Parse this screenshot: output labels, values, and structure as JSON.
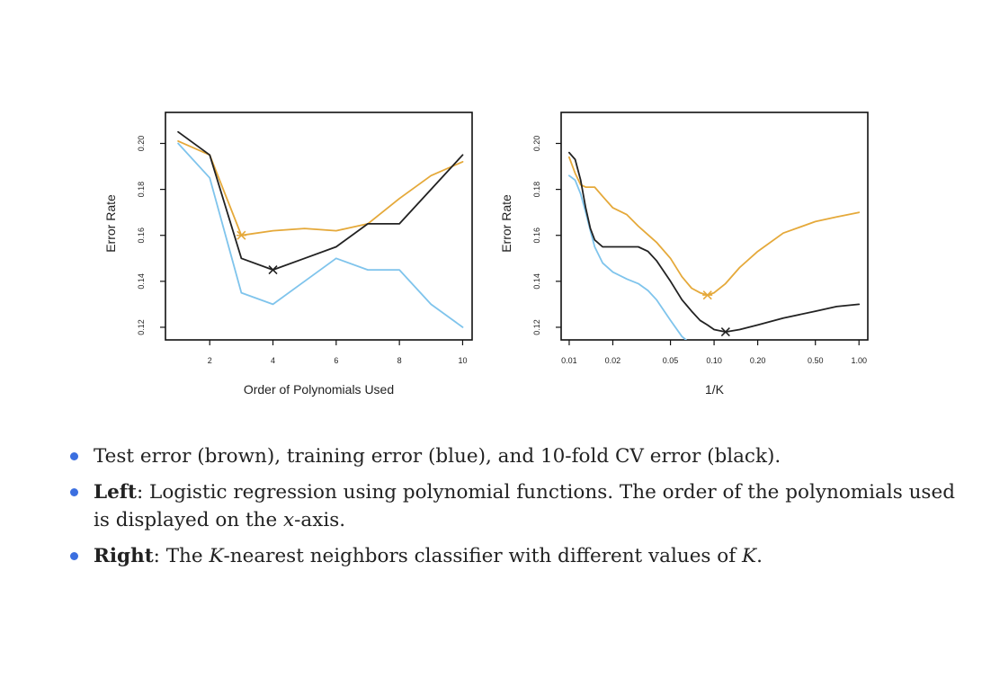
{
  "colors": {
    "test": "#e5a93a",
    "train": "#7fc4ec",
    "cv": "#222222",
    "bullet": "#3b6fe0"
  },
  "chart_data": [
    {
      "type": "line",
      "xlabel": "Order of Polynomials Used",
      "ylabel": "Error Rate",
      "xlim": [
        0.6,
        10.3
      ],
      "ylim": [
        0.1145,
        0.2135
      ],
      "x_scale": "linear",
      "xticks": [
        2,
        4,
        6,
        8,
        10
      ],
      "xtick_labels": [
        "2",
        "4",
        "6",
        "8",
        "10"
      ],
      "yticks": [
        0.12,
        0.14,
        0.16,
        0.18,
        0.2
      ],
      "ytick_labels": [
        "0.12",
        "0.14",
        "0.16",
        "0.18",
        "0.20"
      ],
      "series": [
        {
          "name": "Test error (brown)",
          "color_key": "test",
          "points": [
            [
              1,
              0.201
            ],
            [
              2,
              0.195
            ],
            [
              3,
              0.16
            ],
            [
              4,
              0.162
            ],
            [
              5,
              0.163
            ],
            [
              6,
              0.162
            ],
            [
              7,
              0.165
            ],
            [
              8,
              0.176
            ],
            [
              9,
              0.186
            ],
            [
              10,
              0.192
            ]
          ]
        },
        {
          "name": "Training error (blue)",
          "color_key": "train",
          "points": [
            [
              1,
              0.2
            ],
            [
              2,
              0.185
            ],
            [
              3,
              0.135
            ],
            [
              4,
              0.13
            ],
            [
              5,
              0.14
            ],
            [
              6,
              0.15
            ],
            [
              7,
              0.145
            ],
            [
              8,
              0.145
            ],
            [
              9,
              0.13
            ],
            [
              10,
              0.12
            ]
          ]
        },
        {
          "name": "10-fold CV error (black)",
          "color_key": "cv",
          "points": [
            [
              1,
              0.205
            ],
            [
              2,
              0.195
            ],
            [
              3,
              0.15
            ],
            [
              4,
              0.145
            ],
            [
              5,
              0.15
            ],
            [
              6,
              0.155
            ],
            [
              7,
              0.165
            ],
            [
              8,
              0.165
            ],
            [
              9,
              0.18
            ],
            [
              10,
              0.195
            ]
          ]
        }
      ],
      "markers": [
        {
          "series": "Test error (brown)",
          "x": 3,
          "y": 0.16,
          "symbol": "asterisk"
        },
        {
          "series": "10-fold CV error (black)",
          "x": 4,
          "y": 0.145,
          "symbol": "cross"
        }
      ]
    },
    {
      "type": "line",
      "xlabel": "1/K",
      "ylabel": "Error Rate",
      "xlim": [
        0.0088,
        1.15
      ],
      "ylim": [
        0.1145,
        0.2135
      ],
      "x_scale": "log",
      "xticks": [
        0.01,
        0.02,
        0.05,
        0.1,
        0.2,
        0.5,
        1.0
      ],
      "xtick_labels": [
        "0.01",
        "0.02",
        "0.05",
        "0.10",
        "0.20",
        "0.50",
        "1.00"
      ],
      "yticks": [
        0.12,
        0.14,
        0.16,
        0.18,
        0.2
      ],
      "ytick_labels": [
        "0.12",
        "0.14",
        "0.16",
        "0.18",
        "0.20"
      ],
      "series": [
        {
          "name": "Test error (brown)",
          "color_key": "test",
          "points": [
            [
              0.01,
              0.194
            ],
            [
              0.011,
              0.187
            ],
            [
              0.012,
              0.182
            ],
            [
              0.013,
              0.181
            ],
            [
              0.015,
              0.181
            ],
            [
              0.017,
              0.177
            ],
            [
              0.02,
              0.172
            ],
            [
              0.025,
              0.169
            ],
            [
              0.03,
              0.164
            ],
            [
              0.04,
              0.157
            ],
            [
              0.05,
              0.15
            ],
            [
              0.06,
              0.142
            ],
            [
              0.07,
              0.137
            ],
            [
              0.08,
              0.135
            ],
            [
              0.09,
              0.134
            ],
            [
              0.1,
              0.135
            ],
            [
              0.12,
              0.139
            ],
            [
              0.15,
              0.146
            ],
            [
              0.2,
              0.153
            ],
            [
              0.3,
              0.161
            ],
            [
              0.5,
              0.166
            ],
            [
              0.7,
              0.168
            ],
            [
              1.0,
              0.17
            ]
          ]
        },
        {
          "name": "Training error (blue)",
          "color_key": "train",
          "points": [
            [
              0.01,
              0.186
            ],
            [
              0.011,
              0.184
            ],
            [
              0.012,
              0.178
            ],
            [
              0.013,
              0.17
            ],
            [
              0.014,
              0.162
            ],
            [
              0.015,
              0.155
            ],
            [
              0.017,
              0.148
            ],
            [
              0.02,
              0.144
            ],
            [
              0.025,
              0.141
            ],
            [
              0.03,
              0.139
            ],
            [
              0.035,
              0.136
            ],
            [
              0.04,
              0.132
            ],
            [
              0.05,
              0.123
            ],
            [
              0.06,
              0.116
            ],
            [
              0.064,
              0.1145
            ]
          ]
        },
        {
          "name": "10-fold CV error (black)",
          "color_key": "cv",
          "points": [
            [
              0.01,
              0.196
            ],
            [
              0.011,
              0.193
            ],
            [
              0.012,
              0.184
            ],
            [
              0.013,
              0.172
            ],
            [
              0.014,
              0.163
            ],
            [
              0.015,
              0.158
            ],
            [
              0.017,
              0.155
            ],
            [
              0.02,
              0.155
            ],
            [
              0.025,
              0.155
            ],
            [
              0.03,
              0.155
            ],
            [
              0.035,
              0.153
            ],
            [
              0.04,
              0.149
            ],
            [
              0.05,
              0.14
            ],
            [
              0.06,
              0.132
            ],
            [
              0.07,
              0.127
            ],
            [
              0.08,
              0.123
            ],
            [
              0.09,
              0.121
            ],
            [
              0.1,
              0.119
            ],
            [
              0.12,
              0.118
            ],
            [
              0.15,
              0.119
            ],
            [
              0.2,
              0.121
            ],
            [
              0.3,
              0.124
            ],
            [
              0.5,
              0.127
            ],
            [
              0.7,
              0.129
            ],
            [
              1.0,
              0.13
            ]
          ]
        }
      ],
      "markers": [
        {
          "series": "Test error (brown)",
          "x": 0.09,
          "y": 0.134,
          "symbol": "asterisk"
        },
        {
          "series": "10-fold CV error (black)",
          "x": 0.12,
          "y": 0.118,
          "symbol": "cross"
        }
      ]
    }
  ],
  "bullets": [
    {
      "text": "Test error (brown), training error (blue), and 10-fold CV error (black)."
    },
    {
      "bold": "Left",
      "text_before_math": ": Logistic regression using polynomial functions. The order of the polynomials used is displayed on the ",
      "math": "x",
      "text_after_math": "-axis."
    },
    {
      "bold": "Right",
      "text_before_math": ": The ",
      "math": "K",
      "text_mid": "-nearest neighbors classifier with different values of ",
      "math2": "K",
      "text_end": "."
    }
  ]
}
